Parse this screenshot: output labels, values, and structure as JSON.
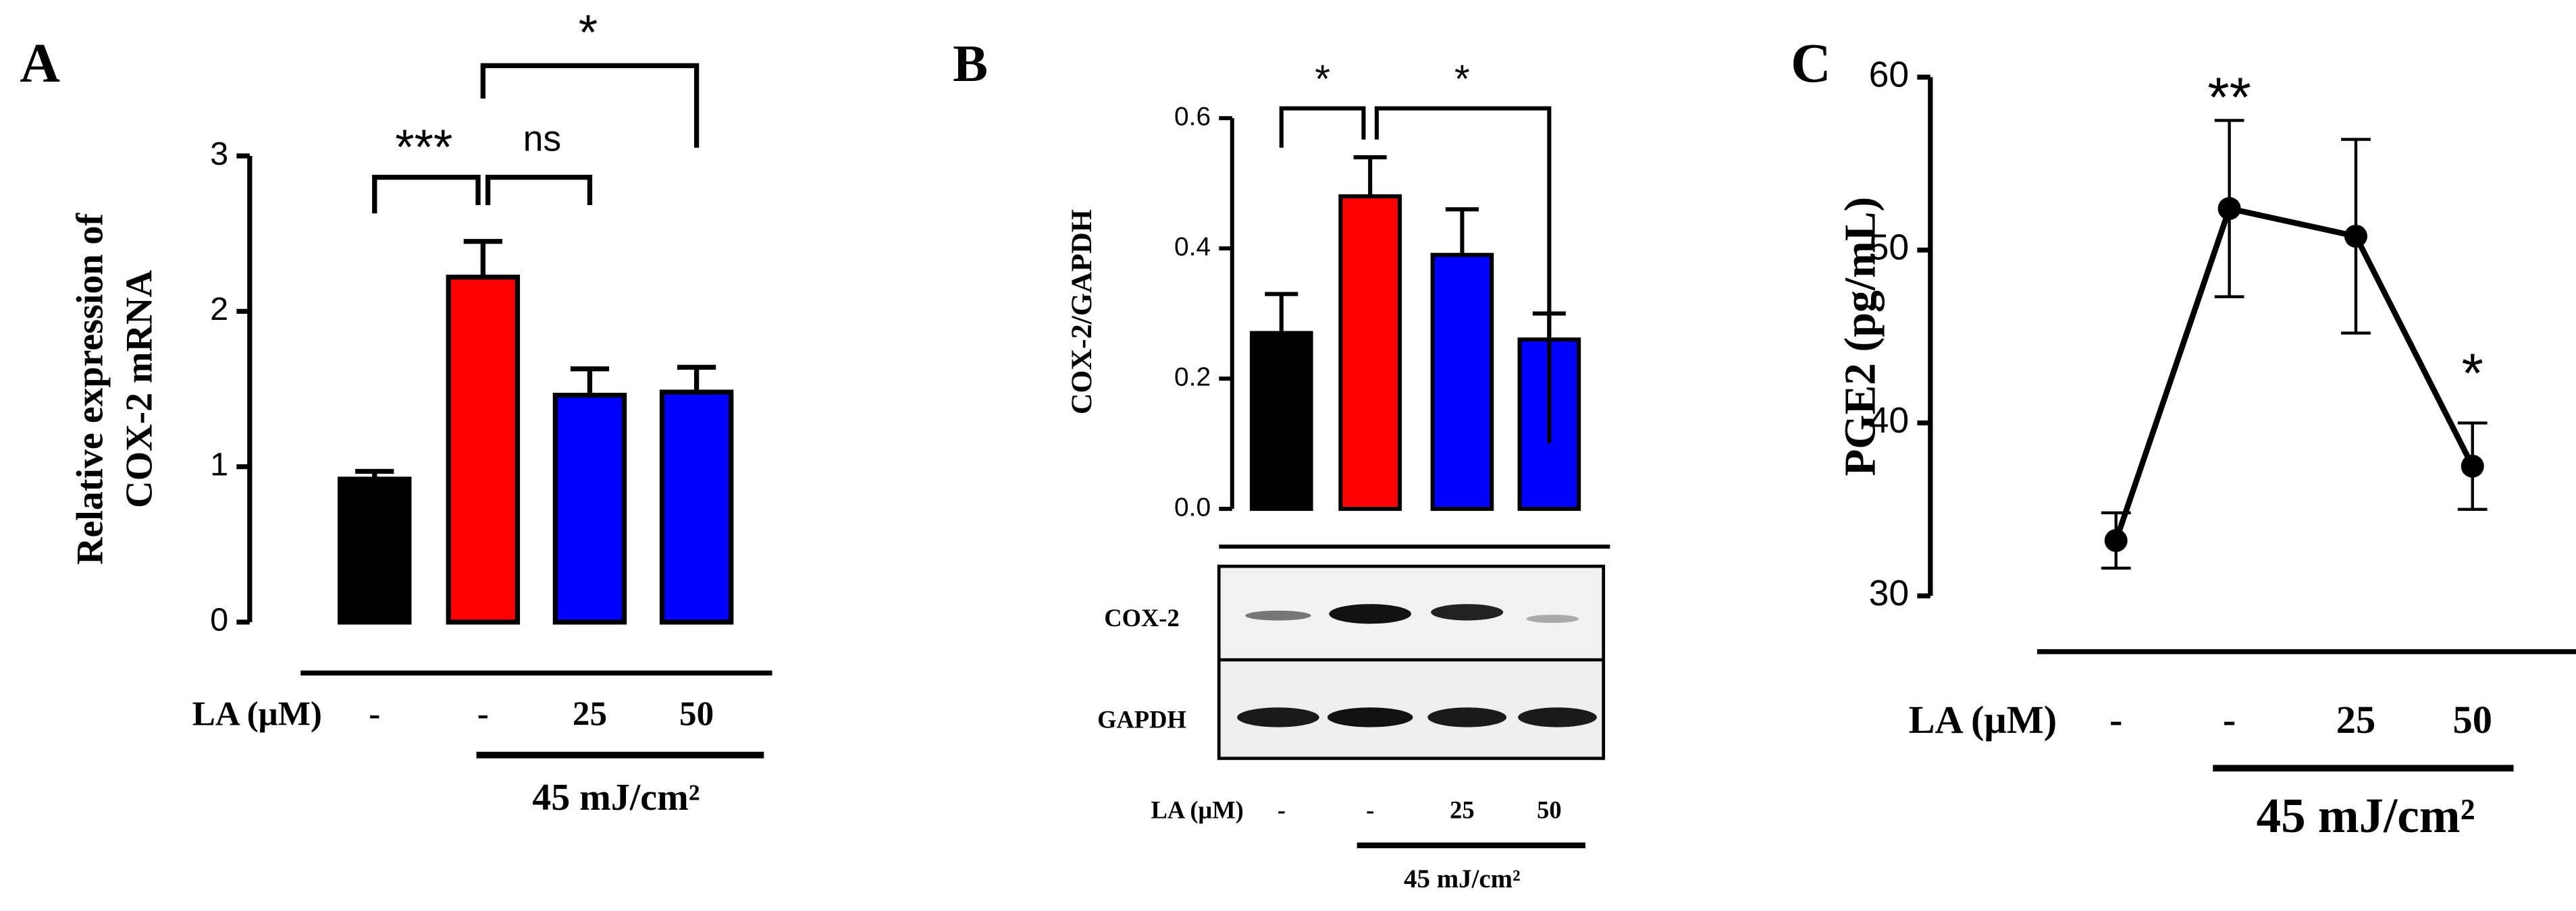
{
  "chart_data": [
    {
      "type": "bar",
      "panel": "A",
      "ylabel": [
        "Relative expression of",
        "COX-2 mRNA"
      ],
      "row_label": "LA (μM)",
      "categories": [
        "-",
        "-",
        "25",
        "50"
      ],
      "treatment": "45 mJ/cm²",
      "series": [
        {
          "values": [
            0.92,
            2.22,
            1.46,
            1.48
          ],
          "errors": [
            0.05,
            0.23,
            0.17,
            0.16
          ],
          "colors": [
            "#000000",
            "#ff0000",
            "#0000ff",
            "#0000ff"
          ]
        }
      ],
      "ylim": [
        0,
        3
      ],
      "yticks": [
        0,
        1,
        2,
        3
      ],
      "annotations": [
        "***",
        "ns",
        "*"
      ]
    },
    {
      "type": "bar",
      "panel": "B",
      "ylabel": [
        "COX-2/GAPDH"
      ],
      "row_label": "LA (μM)",
      "categories": [
        "-",
        "-",
        "25",
        "50"
      ],
      "treatment": "45 mJ/cm²",
      "blot_labels": [
        "COX-2",
        "GAPDH"
      ],
      "series": [
        {
          "values": [
            0.27,
            0.48,
            0.39,
            0.26
          ],
          "errors": [
            0.06,
            0.06,
            0.07,
            0.04
          ],
          "colors": [
            "#000000",
            "#ff0000",
            "#0000ff",
            "#0000ff"
          ]
        }
      ],
      "ylim": [
        0,
        0.6
      ],
      "yticks": [
        {
          "value": 0,
          "label": "0.0"
        },
        0.2,
        0.4,
        0.6
      ],
      "annotations": [
        "*",
        "*"
      ]
    },
    {
      "type": "line",
      "panel": "C",
      "ylabel": [
        "PGE2 (pg/mL)"
      ],
      "row_label": "LA (μM)",
      "categories": [
        "-",
        "-",
        "25",
        "50"
      ],
      "treatment": "45 mJ/cm²",
      "series": [
        {
          "values": [
            33.2,
            52.4,
            50.8,
            37.5
          ],
          "errors": [
            1.6,
            5.1,
            5.6,
            2.5
          ],
          "color": "#000000"
        }
      ],
      "ylim": [
        30,
        60
      ],
      "yticks": [
        30,
        40,
        50,
        60
      ],
      "annotations": [
        "**",
        "*"
      ]
    }
  ]
}
